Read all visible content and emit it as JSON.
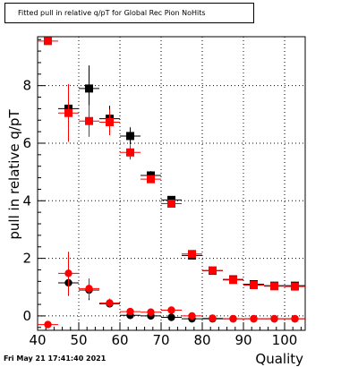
{
  "timestamp": "Fri May 21 17:41:40 2021",
  "chart_data": {
    "type": "scatter",
    "title": "Fitted pull in relative q/pT for Global Rec Pion NoHits",
    "xlabel": "Quality",
    "ylabel": "pull in relative q/pT",
    "xlim": [
      40,
      105
    ],
    "ylim": [
      -0.5,
      9.7
    ],
    "xticks": [
      40,
      50,
      60,
      70,
      80,
      90,
      100
    ],
    "yticks": [
      0,
      2,
      4,
      6,
      8
    ],
    "grid": true,
    "colors": {
      "black": "#000000",
      "red": "#ff0000"
    },
    "series": [
      {
        "color": "#000000",
        "marker": "square",
        "x": [
          47.5,
          52.5,
          57.5,
          62.5,
          67.5,
          72.5,
          77.5,
          82.5,
          87.5,
          92.5,
          97.5,
          102.5
        ],
        "y": [
          7.2,
          7.9,
          6.85,
          6.25,
          4.88,
          4.03,
          2.1,
          1.57,
          1.27,
          1.1,
          1.05,
          1.05
        ],
        "yerr": [
          0.3,
          0.8,
          0.45,
          0.3,
          0.15,
          0.08,
          0.06,
          0.05,
          0.05,
          0.04,
          0.04,
          0.04
        ]
      },
      {
        "color": "#ff0000",
        "marker": "square",
        "x": [
          42.5,
          47.5,
          52.5,
          57.5,
          62.5,
          67.5,
          72.5,
          77.5,
          82.5,
          87.5,
          92.5,
          97.5,
          102.5
        ],
        "y": [
          9.55,
          7.05,
          6.77,
          6.73,
          5.68,
          4.75,
          3.9,
          2.15,
          1.58,
          1.25,
          1.07,
          1.03,
          1.02
        ],
        "yerr": [
          0,
          1.0,
          0.55,
          0.45,
          0.25,
          0.12,
          0.08,
          0.07,
          0.06,
          0.05,
          0.04,
          0.04,
          0.04
        ]
      },
      {
        "color": "#000000",
        "marker": "circle",
        "x": [
          47.5,
          52.5,
          57.5,
          62.5,
          67.5,
          72.5,
          77.5,
          82.5,
          87.5,
          92.5,
          97.5,
          102.5
        ],
        "y": [
          1.15,
          0.9,
          0.42,
          0.02,
          0.0,
          -0.05,
          -0.1,
          -0.1,
          -0.1,
          -0.1,
          -0.1,
          -0.1
        ],
        "yerr": [
          0.45,
          0.35,
          0.12,
          0.12,
          0.06,
          0.04,
          0.03,
          0.02,
          0.02,
          0.02,
          0.02,
          0.02
        ]
      },
      {
        "color": "#ff0000",
        "marker": "circle",
        "x": [
          42.5,
          47.5,
          52.5,
          57.5,
          62.5,
          67.5,
          72.5,
          77.5,
          82.5,
          87.5,
          92.5,
          97.5,
          102.5
        ],
        "y": [
          -0.3,
          1.48,
          0.95,
          0.45,
          0.15,
          0.13,
          0.2,
          0.0,
          -0.08,
          -0.1,
          -0.1,
          -0.1,
          -0.1
        ],
        "yerr": [
          0,
          0.75,
          0.35,
          0.15,
          0.1,
          0.08,
          0.06,
          0.04,
          0.03,
          0.02,
          0.02,
          0.02,
          0.02
        ]
      }
    ]
  }
}
